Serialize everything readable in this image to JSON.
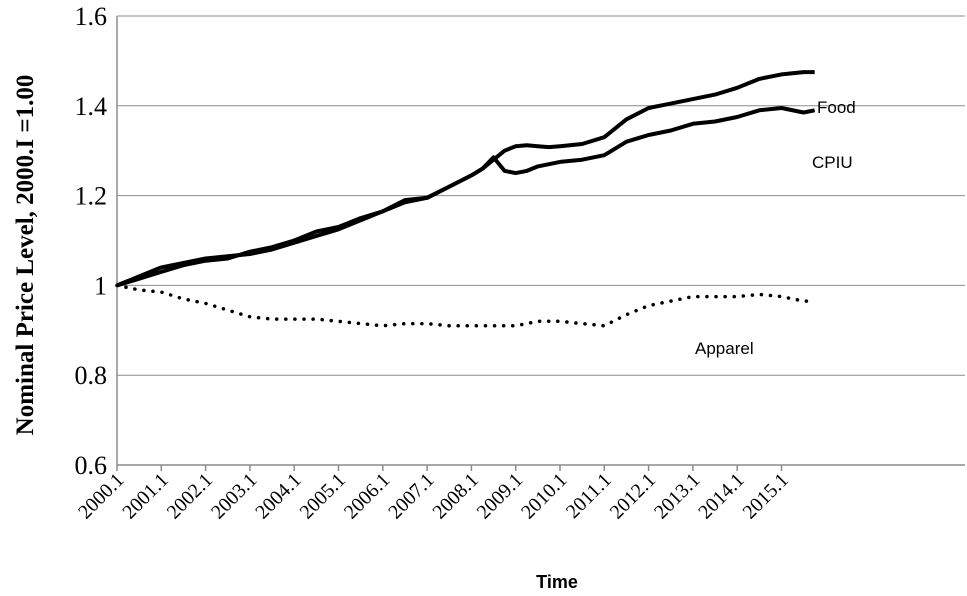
{
  "chart_data": {
    "type": "line",
    "ylabel": "Nominal Price Level, 2000.I =1.00",
    "xlabel": "Time",
    "ylim": [
      0.6,
      1.6
    ],
    "yticks": [
      "0.6",
      "0.8",
      "1",
      "1.2",
      "1.4",
      "1.6"
    ],
    "xlim": [
      2000.0,
      2015.75
    ],
    "xticks": [
      "2000.1",
      "2001.1",
      "2002.1",
      "2003.1",
      "2004.1",
      "2005.1",
      "2006.1",
      "2007.1",
      "2008.1",
      "2009.1",
      "2010.1",
      "2011.1",
      "2012.1",
      "2013.1",
      "2014.1",
      "2015.1"
    ],
    "grid": "horizontal",
    "series": [
      {
        "name": "Food",
        "style": "solid",
        "color": "#000000",
        "x": [
          2000.0,
          2000.5,
          2001.0,
          2001.5,
          2002.0,
          2002.5,
          2003.0,
          2003.5,
          2004.0,
          2004.5,
          2005.0,
          2005.5,
          2006.0,
          2006.5,
          2007.0,
          2007.5,
          2008.0,
          2008.25,
          2008.5,
          2008.75,
          2009.0,
          2009.25,
          2009.5,
          2009.75,
          2010.0,
          2010.5,
          2011.0,
          2011.5,
          2012.0,
          2012.5,
          2013.0,
          2013.5,
          2014.0,
          2014.5,
          2015.0,
          2015.5,
          2015.75
        ],
        "values": [
          1.0,
          1.02,
          1.04,
          1.05,
          1.06,
          1.065,
          1.07,
          1.08,
          1.095,
          1.11,
          1.125,
          1.145,
          1.165,
          1.185,
          1.195,
          1.22,
          1.245,
          1.26,
          1.28,
          1.3,
          1.31,
          1.312,
          1.31,
          1.308,
          1.31,
          1.315,
          1.33,
          1.37,
          1.395,
          1.405,
          1.415,
          1.425,
          1.44,
          1.46,
          1.47,
          1.475,
          1.475
        ]
      },
      {
        "name": "CPIU",
        "style": "solid",
        "color": "#000000",
        "x": [
          2000.0,
          2000.5,
          2001.0,
          2001.5,
          2002.0,
          2002.5,
          2003.0,
          2003.5,
          2004.0,
          2004.5,
          2005.0,
          2005.5,
          2006.0,
          2006.5,
          2007.0,
          2007.5,
          2008.0,
          2008.25,
          2008.5,
          2008.75,
          2009.0,
          2009.25,
          2009.5,
          2010.0,
          2010.5,
          2011.0,
          2011.5,
          2012.0,
          2012.5,
          2013.0,
          2013.5,
          2014.0,
          2014.5,
          2015.0,
          2015.5,
          2015.75
        ],
        "values": [
          1.0,
          1.015,
          1.03,
          1.045,
          1.055,
          1.06,
          1.075,
          1.085,
          1.1,
          1.12,
          1.13,
          1.15,
          1.165,
          1.19,
          1.195,
          1.22,
          1.245,
          1.26,
          1.285,
          1.255,
          1.25,
          1.255,
          1.265,
          1.275,
          1.28,
          1.29,
          1.32,
          1.335,
          1.345,
          1.36,
          1.365,
          1.375,
          1.39,
          1.395,
          1.385,
          1.39
        ]
      },
      {
        "name": "Apparel",
        "style": "dotted",
        "color": "#000000",
        "x": [
          2000.0,
          2000.5,
          2001.0,
          2001.5,
          2002.0,
          2002.5,
          2003.0,
          2003.5,
          2004.0,
          2004.5,
          2005.0,
          2005.5,
          2006.0,
          2006.5,
          2007.0,
          2007.5,
          2008.0,
          2008.5,
          2009.0,
          2009.5,
          2010.0,
          2010.5,
          2011.0,
          2011.5,
          2012.0,
          2012.5,
          2013.0,
          2013.5,
          2014.0,
          2014.5,
          2015.0,
          2015.5,
          2015.75
        ],
        "values": [
          1.0,
          0.99,
          0.985,
          0.97,
          0.96,
          0.945,
          0.93,
          0.925,
          0.925,
          0.925,
          0.92,
          0.915,
          0.91,
          0.915,
          0.915,
          0.91,
          0.91,
          0.91,
          0.91,
          0.92,
          0.92,
          0.915,
          0.91,
          0.935,
          0.955,
          0.965,
          0.975,
          0.975,
          0.975,
          0.98,
          0.975,
          0.965,
          0.965
        ]
      }
    ]
  }
}
